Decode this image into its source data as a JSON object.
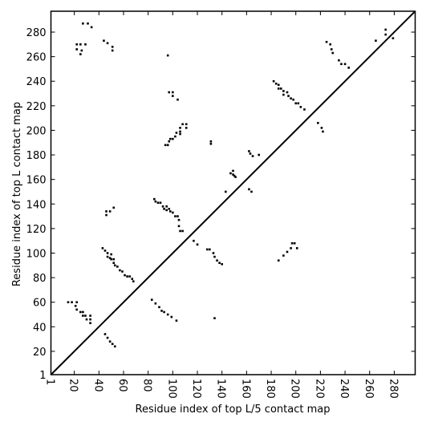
{
  "chart_data": {
    "type": "scatter",
    "xlabel": "Residue index of top L/5 contact map",
    "ylabel": "Residue index of top L contact map",
    "xlim": [
      1,
      297
    ],
    "ylim": [
      1,
      297
    ],
    "xticks": [
      1,
      20,
      40,
      60,
      80,
      100,
      120,
      140,
      160,
      180,
      200,
      220,
      240,
      260,
      280
    ],
    "yticks": [
      1,
      20,
      40,
      60,
      80,
      100,
      120,
      140,
      160,
      180,
      200,
      220,
      240,
      260,
      280
    ],
    "diagonal": true,
    "series": [
      {
        "color": "#000000",
        "x": [
          27,
          31,
          34,
          22,
          22,
          25,
          26,
          25,
          29,
          44,
          47,
          51,
          51,
          96,
          97,
          100,
          100,
          104,
          94,
          96,
          97,
          98,
          100,
          102,
          103,
          106,
          106,
          108,
          111,
          111,
          106,
          131,
          131,
          85,
          86,
          88,
          90,
          92,
          93,
          95,
          95,
          97,
          98,
          100,
          102,
          104,
          105,
          105,
          106,
          108,
          46,
          49,
          52,
          46,
          117,
          120,
          43,
          45,
          47,
          47,
          49,
          50,
          52,
          52,
          53,
          55,
          57,
          59,
          61,
          63,
          65,
          67,
          68,
          50,
          128,
          130,
          133,
          134,
          136,
          138,
          140,
          15,
          18,
          21,
          22,
          22,
          25,
          27,
          27,
          29,
          30,
          33,
          33,
          33,
          83,
          86,
          89,
          91,
          93,
          96,
          99,
          103,
          45,
          47,
          49,
          51,
          53,
          134,
          143,
          147,
          149,
          150,
          151,
          149,
          162,
          163,
          165,
          170,
          162,
          164,
          182,
          184,
          186,
          186,
          188,
          190,
          190,
          193,
          194,
          196,
          198,
          200,
          202,
          204,
          207,
          218,
          221,
          222,
          225,
          228,
          229,
          230,
          235,
          237,
          240,
          243,
          265,
          273,
          273,
          279,
          186,
          190,
          193,
          196,
          197,
          199,
          201
        ],
        "y": [
          287,
          287,
          284,
          270,
          266,
          270,
          265,
          262,
          270,
          273,
          271,
          268,
          265,
          261,
          231,
          231,
          228,
          225,
          188,
          188,
          191,
          193,
          193,
          195,
          198,
          199,
          202,
          205,
          205,
          202,
          197,
          191,
          189,
          144,
          142,
          141,
          141,
          138,
          136,
          138,
          135,
          136,
          134,
          133,
          130,
          130,
          127,
          122,
          118,
          118,
          134,
          134,
          137,
          131,
          110,
          107,
          104,
          102,
          100,
          97,
          96,
          95,
          95,
          92,
          90,
          89,
          86,
          85,
          82,
          81,
          81,
          79,
          77,
          99,
          103,
          103,
          100,
          97,
          94,
          92,
          91,
          60,
          60,
          57,
          60,
          54,
          52,
          52,
          49,
          49,
          46,
          49,
          46,
          43,
          62,
          59,
          56,
          53,
          52,
          50,
          48,
          45,
          34,
          31,
          28,
          26,
          24,
          47,
          150,
          165,
          164,
          163,
          162,
          167,
          183,
          181,
          179,
          180,
          152,
          150,
          240,
          238,
          237,
          234,
          234,
          232,
          229,
          231,
          228,
          226,
          225,
          222,
          222,
          219,
          217,
          206,
          202,
          199,
          272,
          270,
          266,
          263,
          257,
          254,
          254,
          251,
          273,
          282,
          278,
          275,
          94,
          98,
          101,
          104,
          108,
          108,
          104
        ]
      }
    ]
  }
}
